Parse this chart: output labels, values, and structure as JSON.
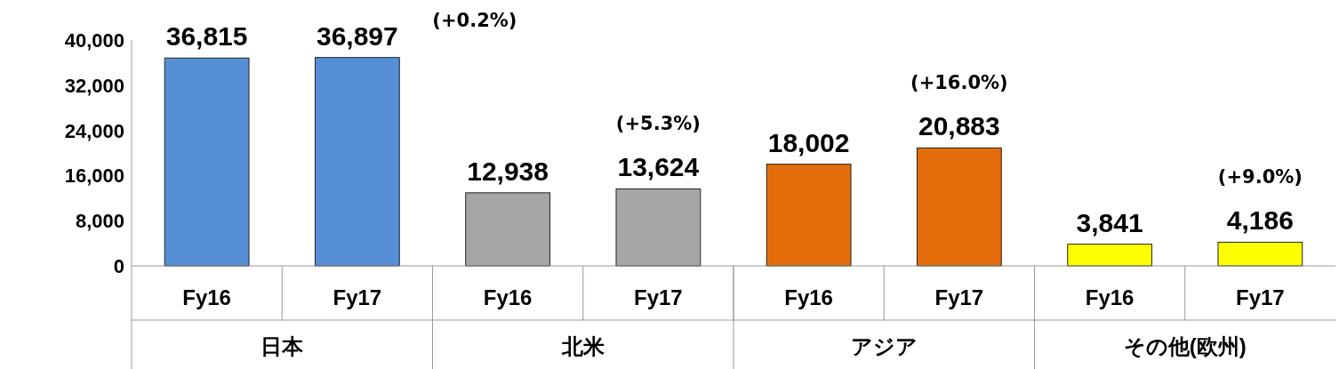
{
  "chart_data": {
    "type": "bar",
    "categories": [
      "Fy16",
      "Fy17",
      "Fy16",
      "Fy17",
      "Fy16",
      "Fy17",
      "Fy16",
      "Fy17"
    ],
    "values": [
      36815,
      36897,
      12938,
      13624,
      18002,
      20883,
      3841,
      4186
    ],
    "value_labels": [
      "36,815",
      "36,897",
      "12,938",
      "13,624",
      "18,002",
      "20,883",
      "3,841",
      "4,186"
    ],
    "colors": [
      "#558ed5",
      "#558ed5",
      "#a6a6a6",
      "#a6a6a6",
      "#e46c0a",
      "#e46c0a",
      "#ffff00",
      "#ffff00"
    ],
    "ylim": [
      0,
      40000
    ],
    "yticks": [
      {
        "value": 0,
        "label": "0"
      },
      {
        "value": 8000,
        "label": "8,000"
      },
      {
        "value": 16000,
        "label": "16,000"
      },
      {
        "value": 24000,
        "label": "24,000"
      },
      {
        "value": 32000,
        "label": "32,000"
      },
      {
        "value": 40000,
        "label": "40,000"
      }
    ],
    "annotations": [
      "日本",
      "(+0.2%)",
      "北米",
      "(+5.3%)",
      "アジア",
      "(+16.0%)",
      "その他(欧州)",
      "(+9.0%)"
    ]
  }
}
